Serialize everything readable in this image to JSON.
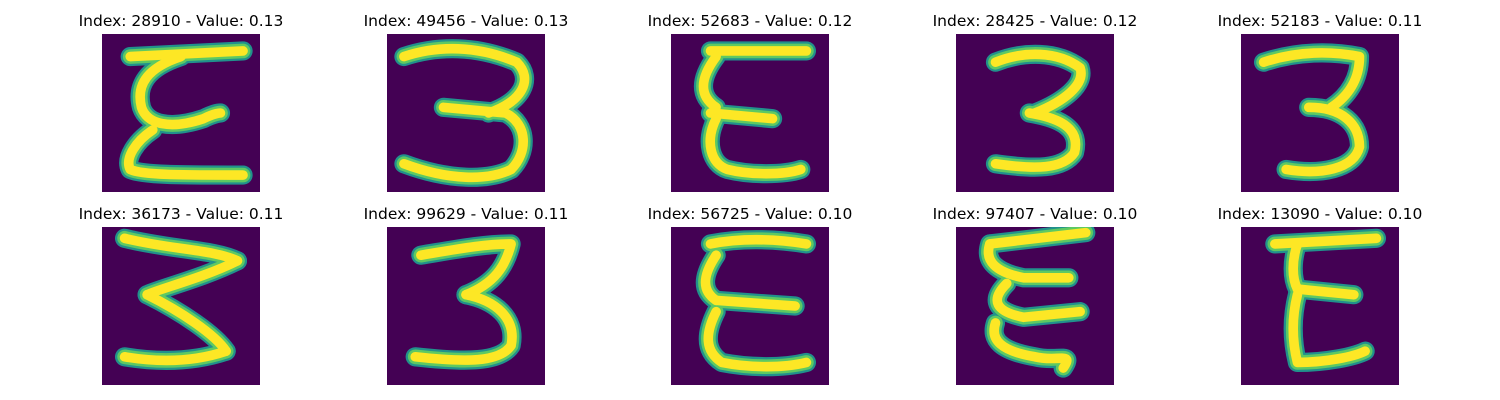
{
  "colors": {
    "background": "#ffffff",
    "colormap": [
      "#440154",
      "#3b528b",
      "#21918c",
      "#5ec962",
      "#fde725"
    ]
  },
  "panels": [
    {
      "title": "Index: 28910 - Value: 0.13",
      "digit_glyph": "E"
    },
    {
      "title": "Index: 49456 - Value: 0.13",
      "digit_glyph": "3"
    },
    {
      "title": "Index: 52683 - Value: 0.12",
      "digit_glyph": "E"
    },
    {
      "title": "Index: 28425 - Value: 0.12",
      "digit_glyph": "3"
    },
    {
      "title": "Index: 52183 - Value: 0.11",
      "digit_glyph": "3"
    },
    {
      "title": "Index: 36173 - Value: 0.11",
      "digit_glyph": "3"
    },
    {
      "title": "Index: 99629 - Value: 0.11",
      "digit_glyph": "3"
    },
    {
      "title": "Index: 56725 - Value: 0.10",
      "digit_glyph": "E"
    },
    {
      "title": "Index: 97407 - Value: 0.10",
      "digit_glyph": "E"
    },
    {
      "title": "Index: 13090 - Value: 0.10",
      "digit_glyph": "E"
    }
  ]
}
